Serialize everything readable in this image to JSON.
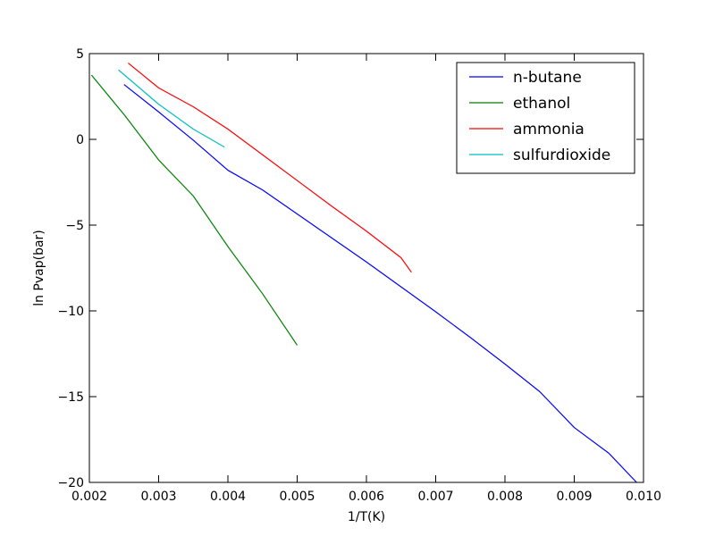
{
  "chart_data": {
    "type": "line",
    "xlabel": "1/T(K)",
    "ylabel": "ln Pvap(bar)",
    "xlim": [
      0.002,
      0.01
    ],
    "ylim": [
      -20,
      5
    ],
    "x_ticks": [
      0.002,
      0.003,
      0.004,
      0.005,
      0.006,
      0.007,
      0.008,
      0.009,
      0.01
    ],
    "x_tick_labels": [
      "0.002",
      "0.003",
      "0.004",
      "0.005",
      "0.006",
      "0.007",
      "0.008",
      "0.009",
      "0.010"
    ],
    "y_ticks": [
      5,
      0,
      -5,
      -10,
      -15,
      -20
    ],
    "y_tick_labels": [
      "5",
      "0",
      "−5",
      "−10",
      "−15",
      "−20"
    ],
    "grid": false,
    "legend_position": "top-right",
    "series": [
      {
        "name": "n-butane",
        "color": "#0000ff",
        "x": [
          0.0025,
          0.003,
          0.0035,
          0.004,
          0.0045,
          0.005,
          0.0055,
          0.006,
          0.0065,
          0.007,
          0.0075,
          0.008,
          0.0085,
          0.009,
          0.0095,
          0.0099
        ],
        "y": [
          3.2,
          1.6,
          -0.05,
          -1.8,
          -2.95,
          -4.35,
          -5.75,
          -7.15,
          -8.6,
          -10.05,
          -11.55,
          -13.1,
          -14.7,
          -16.8,
          -18.3,
          -20.0
        ]
      },
      {
        "name": "ethanol",
        "color": "#008000",
        "x": [
          0.00203,
          0.0025,
          0.003,
          0.0035,
          0.004,
          0.0045,
          0.005
        ],
        "y": [
          3.75,
          1.45,
          -1.2,
          -3.3,
          -6.25,
          -9.0,
          -12.0
        ]
      },
      {
        "name": "ammonia",
        "color": "#ff0000",
        "x": [
          0.00256,
          0.003,
          0.0035,
          0.004,
          0.0045,
          0.005,
          0.0055,
          0.006,
          0.0065,
          0.00665
        ],
        "y": [
          4.45,
          3.0,
          1.9,
          0.6,
          -0.9,
          -2.4,
          -3.9,
          -5.35,
          -6.9,
          -7.75
        ]
      },
      {
        "name": "sulfurdioxide",
        "color": "#00bfbf",
        "x": [
          0.00242,
          0.003,
          0.0035,
          0.00395
        ],
        "y": [
          4.05,
          2.05,
          0.6,
          -0.45
        ]
      }
    ]
  }
}
